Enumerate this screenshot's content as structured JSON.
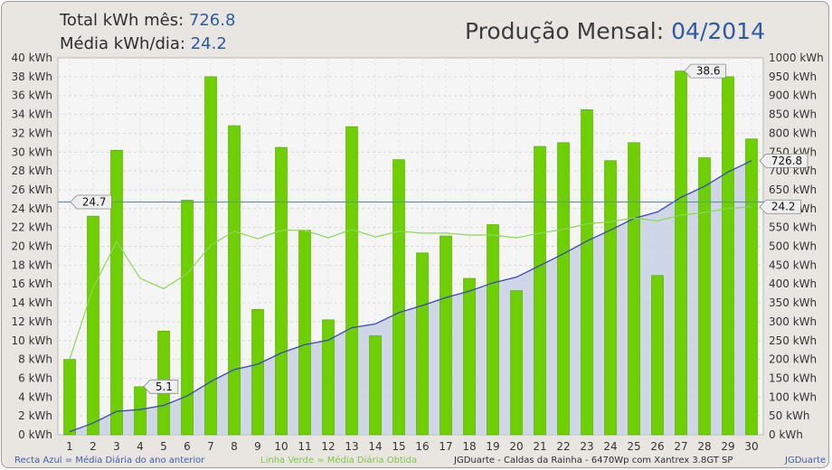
{
  "header": {
    "total_label": "Total kWh mês:",
    "total_value": "726.8",
    "avg_label": "Média kWh/dia:",
    "avg_value": "24.2",
    "title_label": "Produção Mensal:",
    "title_value": "04/2014"
  },
  "footer": {
    "blue_note": "Recta Azul = Média Diária do ano anterior",
    "green_note": "Linha Verde = Média Diária Obtida",
    "system": "JGDuarte  -  Caldas da Rainha  -  6470Wp com Xantrex 3.8GT SP",
    "credit": "JGDuarte"
  },
  "colors": {
    "bar": "#6fd000",
    "bar_edge": "#54a600",
    "cumulative_line": "#3848b8",
    "cumulative_fill": "#c8d0e4",
    "avg_line": "#8ad85a",
    "ref_line": "#5b8fd6",
    "plot_bg": "#f5f5f5"
  },
  "chart_data": {
    "type": "bar",
    "x": [
      1,
      2,
      3,
      4,
      5,
      6,
      7,
      8,
      9,
      10,
      11,
      12,
      13,
      14,
      15,
      16,
      17,
      18,
      19,
      20,
      21,
      22,
      23,
      24,
      25,
      26,
      27,
      28,
      29,
      30
    ],
    "y_left_unit": "kWh",
    "ylim_left": [
      0,
      40
    ],
    "yticks_left_step": 2,
    "y_right_unit": "kWh",
    "ylim_right": [
      0,
      1000
    ],
    "yticks_right_step": 50,
    "grid": true,
    "series": [
      {
        "role": "daily_bars",
        "axis": "left",
        "values": [
          8.0,
          23.2,
          30.2,
          5.1,
          11.0,
          24.9,
          38.0,
          32.8,
          13.3,
          30.5,
          21.7,
          12.2,
          32.7,
          10.5,
          29.2,
          19.3,
          21.1,
          16.6,
          22.3,
          15.3,
          30.6,
          31.0,
          34.5,
          29.1,
          31.0,
          16.9,
          38.6,
          29.4,
          38.0,
          31.4
        ]
      },
      {
        "role": "cumulative_area",
        "axis": "right",
        "values": [
          8,
          31,
          62,
          67,
          78,
          103,
          141,
          173,
          187,
          217,
          239,
          251,
          284,
          294,
          324,
          343,
          364,
          381,
          403,
          418,
          449,
          480,
          514,
          543,
          574,
          591,
          630,
          659,
          697,
          727
        ]
      },
      {
        "role": "running_average",
        "axis": "left",
        "values": [
          8.0,
          15.6,
          20.5,
          16.6,
          15.5,
          17.1,
          20.1,
          21.6,
          20.8,
          21.7,
          21.7,
          20.9,
          21.8,
          21.0,
          21.6,
          21.4,
          21.4,
          21.2,
          21.2,
          20.9,
          21.4,
          21.8,
          22.4,
          22.6,
          23.0,
          22.7,
          23.3,
          23.6,
          24.0,
          24.2
        ]
      }
    ],
    "reference_line": {
      "value": 24.7,
      "label": "24.7"
    },
    "average_end_label": "24.2",
    "annotations": [
      {
        "day": 4,
        "label": "5.1"
      },
      {
        "day": 27,
        "label": "38.6"
      }
    ],
    "cumulative_end_label": "726.8"
  }
}
